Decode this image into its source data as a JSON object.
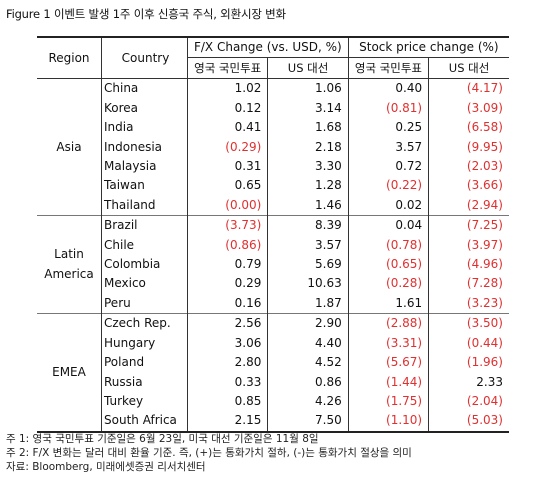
{
  "title": "Figure 1  이벤트 발생 1주 이후 신흥국 주식, 외환시장 변화",
  "headers": {
    "region": "Region",
    "country": "Country",
    "fx_group": "F/X Change (vs. USD, %)",
    "stock_group": "Stock price change (%)",
    "sub_brexit": "영국 국민투표",
    "sub_election": "US 대선"
  },
  "regions": [
    {
      "name": "Asia",
      "rows": [
        {
          "country": "China",
          "fx_brexit": "1.02",
          "fx_election": "1.06",
          "stock_brexit": "0.40",
          "stock_election": "(4.17)"
        },
        {
          "country": "Korea",
          "fx_brexit": "0.12",
          "fx_election": "3.14",
          "stock_brexit": "(0.81)",
          "stock_election": "(3.09)"
        },
        {
          "country": "India",
          "fx_brexit": "0.41",
          "fx_election": "1.68",
          "stock_brexit": "0.25",
          "stock_election": "(6.58)"
        },
        {
          "country": "Indonesia",
          "fx_brexit": "(0.29)",
          "fx_election": "2.18",
          "stock_brexit": "3.57",
          "stock_election": "(9.95)"
        },
        {
          "country": "Malaysia",
          "fx_brexit": "0.31",
          "fx_election": "3.30",
          "stock_brexit": "0.72",
          "stock_election": "(2.03)"
        },
        {
          "country": "Taiwan",
          "fx_brexit": "0.65",
          "fx_election": "1.28",
          "stock_brexit": "(0.22)",
          "stock_election": "(3.66)"
        },
        {
          "country": "Thailand",
          "fx_brexit": "(0.00)",
          "fx_election": "1.46",
          "stock_brexit": "0.02",
          "stock_election": "(2.94)"
        }
      ]
    },
    {
      "name": "Latin America",
      "name_line1": "Latin",
      "name_line2": "America",
      "rows": [
        {
          "country": "Brazil",
          "fx_brexit": "(3.73)",
          "fx_election": "8.39",
          "stock_brexit": "0.04",
          "stock_election": "(7.25)"
        },
        {
          "country": "Chile",
          "fx_brexit": "(0.86)",
          "fx_election": "3.57",
          "stock_brexit": "(0.78)",
          "stock_election": "(3.97)"
        },
        {
          "country": "Colombia",
          "fx_brexit": "0.79",
          "fx_election": "5.69",
          "stock_brexit": "(0.65)",
          "stock_election": "(4.96)"
        },
        {
          "country": "Mexico",
          "fx_brexit": "0.29",
          "fx_election": "10.63",
          "stock_brexit": "(0.28)",
          "stock_election": "(7.28)"
        },
        {
          "country": "Peru",
          "fx_brexit": "0.16",
          "fx_election": "1.87",
          "stock_brexit": "1.61",
          "stock_election": "(3.23)"
        }
      ]
    },
    {
      "name": "EMEA",
      "rows": [
        {
          "country": "Czech Rep.",
          "fx_brexit": "2.56",
          "fx_election": "2.90",
          "stock_brexit": "(2.88)",
          "stock_election": "(3.50)"
        },
        {
          "country": "Hungary",
          "fx_brexit": "3.06",
          "fx_election": "4.40",
          "stock_brexit": "(3.31)",
          "stock_election": "(0.44)"
        },
        {
          "country": "Poland",
          "fx_brexit": "2.80",
          "fx_election": "4.52",
          "stock_brexit": "(5.67)",
          "stock_election": "(1.96)"
        },
        {
          "country": "Russia",
          "fx_brexit": "0.33",
          "fx_election": "0.86",
          "stock_brexit": "(1.44)",
          "stock_election": "2.33"
        },
        {
          "country": "Turkey",
          "fx_brexit": "0.85",
          "fx_election": "4.26",
          "stock_brexit": "(1.75)",
          "stock_election": "(2.04)"
        },
        {
          "country": "South Africa",
          "fx_brexit": "2.15",
          "fx_election": "7.50",
          "stock_brexit": "(1.10)",
          "stock_election": "(5.03)"
        }
      ]
    }
  ],
  "notes": [
    "주 1: 영국 국민투표 기준일은 6월 23일, 미국 대선 기준일은 11월 8일",
    "주 2: F/X 변화는 달러 대비 환율 기준. 즉, (+)는 통화가치 절하, (-)는 통화가치 절상을 의미",
    "자료: Bloomberg, 미래에셋증권 리서치센터"
  ],
  "colors": {
    "negative": "#e03030",
    "text": "#111111"
  }
}
